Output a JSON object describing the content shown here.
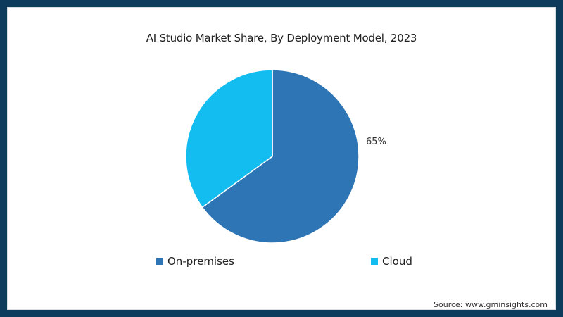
{
  "chart_data": {
    "type": "pie",
    "title": "AI Studio Market Share, By Deployment Model, 2023",
    "categories": [
      "On-premises",
      "Cloud"
    ],
    "values": [
      65,
      35
    ],
    "labels": [
      "65%",
      ""
    ],
    "colors": [
      "#2e75b6",
      "#14bdf0"
    ],
    "legend_position": "bottom",
    "source": "Source: www.gminsights.com"
  },
  "header": {
    "title": "AI Studio Market Share, By Deployment Model, 2023"
  },
  "slices": [
    {
      "name": "On-premises",
      "value": 65,
      "label": "65%",
      "color": "#2e75b6"
    },
    {
      "name": "Cloud",
      "value": 35,
      "label": "",
      "color": "#14bdf0"
    }
  ],
  "legend": {
    "items": [
      {
        "label": "On-premises",
        "color": "#2e75b6"
      },
      {
        "label": "Cloud",
        "color": "#14bdf0"
      }
    ]
  },
  "footer": {
    "source": "Source: www.gminsights.com"
  }
}
